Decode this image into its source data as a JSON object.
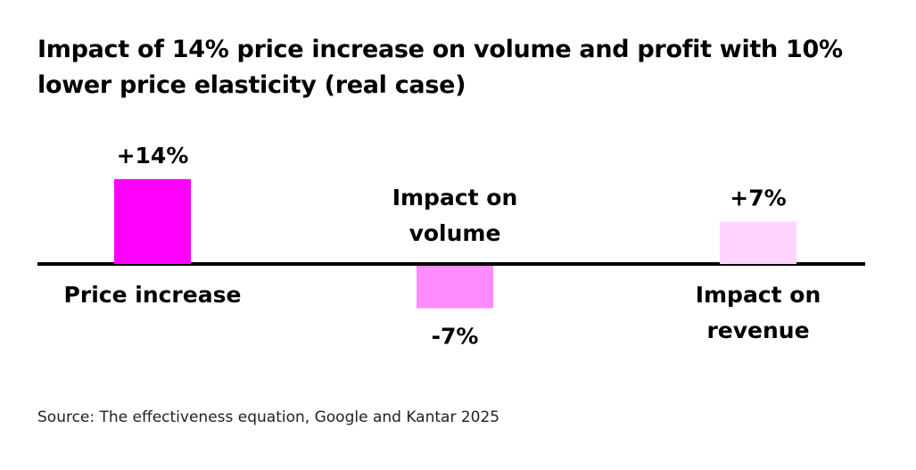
{
  "chart_data": {
    "type": "bar",
    "title": "Impact of 14% price increase on volume and profit with 10% lower price elasticity (real case)",
    "categories": [
      "Price increase",
      "Impact on volume",
      "Impact on revenue"
    ],
    "values": [
      14,
      -7,
      7
    ],
    "data_labels": [
      "+14%",
      "-7%",
      "+7%"
    ],
    "colors": [
      "#ff00ff",
      "#ff8cff",
      "#ffd4ff"
    ],
    "unit": "%",
    "xlabel": "",
    "ylabel": "",
    "grid": false
  },
  "source": "Source: The effectiveness equation, Google and Kantar 2025"
}
